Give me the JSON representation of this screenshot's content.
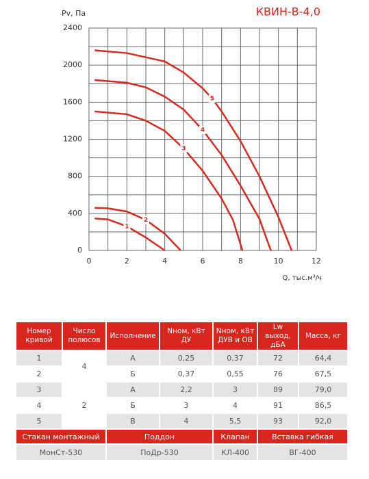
{
  "chart_data": {
    "type": "line",
    "title": "КВИН-В-4,0",
    "y_label": "Pv, Па",
    "x_label": "Q, тыс.м³/ч",
    "xlim": [
      0,
      12
    ],
    "ylim": [
      0,
      2400
    ],
    "xticks": [
      0,
      2,
      4,
      6,
      8,
      10,
      12
    ],
    "yticks": [
      0,
      400,
      800,
      1200,
      1600,
      2000,
      2400
    ],
    "x_grid_lines": [
      0,
      1,
      2,
      3,
      4,
      5,
      6,
      7,
      8,
      9,
      10,
      11,
      12
    ],
    "y_grid_lines": [
      0,
      200,
      400,
      600,
      800,
      1000,
      1200,
      1400,
      1600,
      1800,
      2000,
      2200,
      2400
    ],
    "grid": true,
    "series": [
      {
        "name": "1",
        "color": "#d42a1f",
        "x": [
          0.3,
          1,
          2,
          3,
          4
        ],
        "values": [
          345,
          335,
          260,
          140,
          0
        ]
      },
      {
        "name": "2",
        "color": "#d42a1f",
        "x": [
          0.3,
          1,
          2,
          3,
          4,
          4.84
        ],
        "values": [
          460,
          455,
          420,
          330,
          180,
          0
        ]
      },
      {
        "name": "3",
        "color": "#d42a1f",
        "x": [
          0.3,
          2,
          3,
          4,
          5,
          6,
          7,
          7.6,
          8.1
        ],
        "values": [
          1500,
          1470,
          1400,
          1290,
          1100,
          860,
          560,
          330,
          0
        ]
      },
      {
        "name": "4",
        "color": "#d42a1f",
        "x": [
          0.3,
          2,
          3,
          4,
          5,
          6,
          7,
          8,
          9,
          9.6
        ],
        "values": [
          1840,
          1810,
          1760,
          1660,
          1520,
          1300,
          1030,
          700,
          340,
          0
        ]
      },
      {
        "name": "5",
        "color": "#d42a1f",
        "x": [
          0.3,
          2,
          4,
          5,
          6,
          6.5,
          7,
          8,
          9,
          10,
          10.7
        ],
        "values": [
          2160,
          2130,
          2040,
          1920,
          1750,
          1640,
          1500,
          1180,
          800,
          360,
          0
        ]
      }
    ]
  },
  "table": {
    "header": [
      "Номер кривой",
      "Число полюсов",
      "Исполнение",
      "Nном, кВт ДУ",
      "Nном, кВт ДУВ и ОВ",
      "Lw выход, дБА",
      "Масса, кг"
    ],
    "poles": [
      "4",
      "2"
    ],
    "rows": [
      [
        "1",
        "А",
        "0,25",
        "0,37",
        "72",
        "64,4"
      ],
      [
        "2",
        "Б",
        "0,37",
        "0,55",
        "76",
        "67,5"
      ],
      [
        "3",
        "А",
        "2,2",
        "3",
        "89",
        "79,0"
      ],
      [
        "4",
        "Б",
        "3",
        "4",
        "91",
        "86,5"
      ],
      [
        "5",
        "В",
        "4",
        "5,5",
        "93",
        "92,0"
      ]
    ],
    "accessory_headers": [
      "Стакан монтажный",
      "Поддон",
      "Клапан",
      "Вставка гибкая"
    ],
    "accessory_values": [
      "МонСт-530",
      "ПоДр-530",
      "КЛ-400",
      "ВГ-400"
    ]
  }
}
